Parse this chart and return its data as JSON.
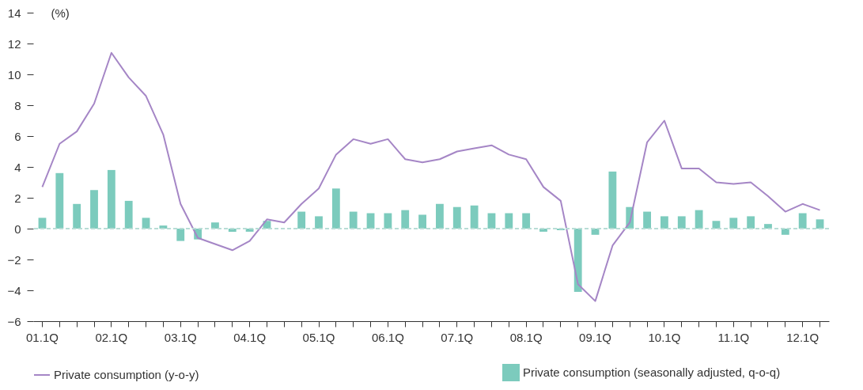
{
  "chart_data": {
    "type": "bar",
    "ylabel": "(%)",
    "categories": [
      "01.1Q",
      null,
      null,
      null,
      "02.1Q",
      null,
      null,
      null,
      "03.1Q",
      null,
      null,
      null,
      "04.1Q",
      null,
      null,
      null,
      "05.1Q",
      null,
      null,
      null,
      "06.1Q",
      null,
      null,
      null,
      "07.1Q",
      null,
      null,
      null,
      "08.1Q",
      null,
      null,
      null,
      "09.1Q",
      null,
      null,
      null,
      "10.1Q",
      null,
      null,
      null,
      "11.1Q",
      null,
      null,
      null,
      "12.1Q",
      null
    ],
    "series": [
      {
        "name": "Private consumption (y-o-y)",
        "type": "line",
        "color": "#a586c6",
        "values": [
          2.7,
          5.5,
          6.3,
          8.1,
          11.4,
          9.8,
          8.6,
          6.1,
          1.6,
          -0.6,
          -1.0,
          -1.4,
          -0.8,
          0.6,
          0.4,
          1.6,
          2.6,
          4.8,
          5.8,
          5.5,
          5.8,
          4.5,
          4.3,
          4.5,
          5.0,
          5.2,
          5.4,
          4.8,
          4.5,
          2.7,
          1.8,
          -3.6,
          -4.7,
          -1.1,
          0.4,
          5.6,
          7.0,
          3.9,
          3.9,
          3.0,
          2.9,
          3.0,
          2.1,
          1.1,
          1.6,
          1.2
        ]
      },
      {
        "name": "Private consumption (seasonally adjusted, q-o-q)",
        "color": "#7ccbbd",
        "values": [
          0.7,
          3.6,
          1.6,
          2.5,
          3.8,
          1.8,
          0.7,
          0.2,
          -0.8,
          -0.7,
          0.4,
          -0.2,
          -0.2,
          0.5,
          0.0,
          1.1,
          0.8,
          2.6,
          1.1,
          1.0,
          1.0,
          1.2,
          0.9,
          1.6,
          1.4,
          1.5,
          1.0,
          1.0,
          1.0,
          -0.2,
          -0.1,
          -4.1,
          -0.4,
          3.7,
          1.4,
          1.1,
          0.8,
          0.8,
          1.2,
          0.5,
          0.7,
          0.8,
          0.3,
          -0.4,
          1.0,
          0.6
        ]
      }
    ],
    "ylim": [
      -6,
      14
    ],
    "yticks": [
      -6,
      -4,
      -2,
      0,
      2,
      4,
      6,
      8,
      10,
      12,
      14
    ],
    "ref_lines": [
      {
        "axis": "y",
        "value": 0,
        "color": "#b9ddd6",
        "line_style": "dashed"
      }
    ],
    "legend": "bottom"
  }
}
